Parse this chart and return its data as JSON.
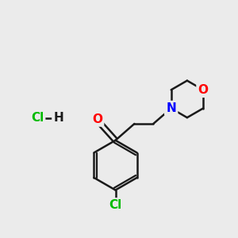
{
  "bg_color": "#ebebeb",
  "bond_color": "#1a1a1a",
  "bond_width": 1.8,
  "atom_colors": {
    "O": "#ff0000",
    "N": "#0000ff",
    "Cl": "#00bb00",
    "C": "#1a1a1a",
    "H": "#1a1a1a"
  },
  "font_size_atom": 11,
  "figsize": [
    3.0,
    3.0
  ],
  "dpi": 100
}
